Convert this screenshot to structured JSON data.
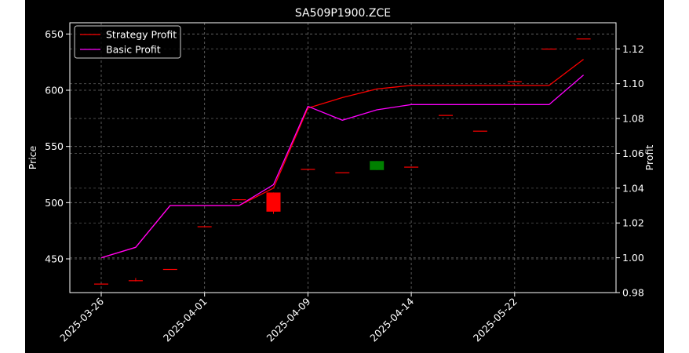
{
  "chart_data": {
    "type": "candlestick",
    "title": "SA509P1900.ZCE",
    "ylabel_left": "Price",
    "ylabel_right": "Profit",
    "xlabel": "",
    "x_tick_labels": [
      "2025-03-26",
      "2025-04-01",
      "2025-04-09",
      "2025-04-14",
      "2025-05-22"
    ],
    "x_tick_index": [
      0,
      3,
      6,
      9,
      12
    ],
    "y_left_ticks": [
      450,
      500,
      550,
      600,
      650
    ],
    "y_left_lim": [
      420,
      660
    ],
    "y_right_ticks": [
      "0.98",
      "1.00",
      "1.02",
      "1.04",
      "1.06",
      "1.08",
      "1.10",
      "1.12"
    ],
    "y_right_lim": [
      0.98,
      1.135
    ],
    "candles": [
      {
        "i": 0,
        "open": 428,
        "close": 428,
        "high": 428,
        "low": 428,
        "color": "#ff0000"
      },
      {
        "i": 1,
        "open": 431,
        "close": 431,
        "high": 433,
        "low": 430,
        "color": "#ff0000"
      },
      {
        "i": 2,
        "open": 441,
        "close": 441,
        "high": 441,
        "low": 441,
        "color": "#ff0000"
      },
      {
        "i": 3,
        "open": 479,
        "close": 479,
        "high": 479,
        "low": 479,
        "color": "#ff0000"
      },
      {
        "i": 4,
        "open": 503,
        "close": 503,
        "high": 503,
        "low": 503,
        "color": "#ff0000"
      },
      {
        "i": 5,
        "open": 509,
        "close": 492,
        "high": 509,
        "low": 490,
        "color": "#ff0000"
      },
      {
        "i": 6,
        "open": 530,
        "close": 530,
        "high": 530,
        "low": 530,
        "color": "#ff0000"
      },
      {
        "i": 7,
        "open": 527,
        "close": 527,
        "high": 527,
        "low": 527,
        "color": "#ff0000"
      },
      {
        "i": 8,
        "open": 529,
        "close": 537,
        "high": 537,
        "low": 529,
        "color": "#008000"
      },
      {
        "i": 9,
        "open": 532,
        "close": 532,
        "high": 532,
        "low": 532,
        "color": "#ff0000"
      },
      {
        "i": 10,
        "open": 578,
        "close": 578,
        "high": 578,
        "low": 578,
        "color": "#ff0000"
      },
      {
        "i": 11,
        "open": 564,
        "close": 564,
        "high": 564,
        "low": 564,
        "color": "#ff0000"
      },
      {
        "i": 12,
        "open": 608,
        "close": 608,
        "high": 608,
        "low": 608,
        "color": "#ff0000"
      },
      {
        "i": 13,
        "open": 637,
        "close": 637,
        "high": 637,
        "low": 637,
        "color": "#ff0000"
      },
      {
        "i": 14,
        "open": 646,
        "close": 646,
        "high": 646,
        "low": 646,
        "color": "#ff0000"
      }
    ],
    "series": [
      {
        "name": "Strategy Profit",
        "color": "#ff0000",
        "values": [
          1.0,
          1.006,
          1.03,
          1.03,
          1.03,
          1.04,
          1.086,
          1.092,
          1.097,
          1.099,
          1.099,
          1.099,
          1.099,
          1.099,
          1.114
        ]
      },
      {
        "name": "Basic Profit",
        "color": "#ff00ff",
        "values": [
          1.0,
          1.006,
          1.03,
          1.03,
          1.03,
          1.042,
          1.087,
          1.079,
          1.085,
          1.088,
          1.088,
          1.088,
          1.088,
          1.088,
          1.105
        ]
      }
    ],
    "grid": true,
    "legend_position": "top-left"
  }
}
